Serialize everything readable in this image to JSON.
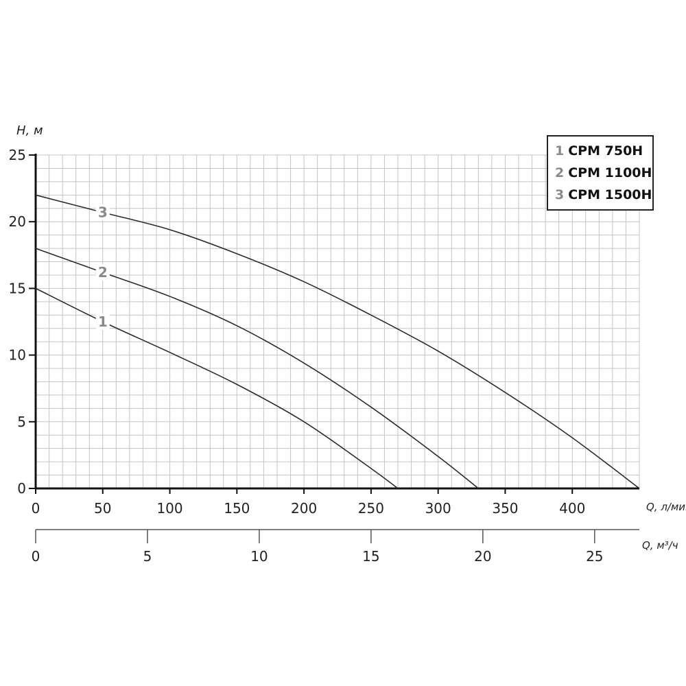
{
  "chart_data": {
    "type": "line",
    "title": "",
    "ylabel": "H, м",
    "xlabel": "Q, л/мин",
    "x2label": "Q, м³/ч",
    "xlim": [
      0,
      450
    ],
    "ylim": [
      0,
      25
    ],
    "grid": true,
    "y_ticks": [
      "0",
      "5",
      "10",
      "15",
      "20",
      "25"
    ],
    "x_ticks": [
      "0",
      "50",
      "100",
      "150",
      "200",
      "250",
      "300",
      "350",
      "400"
    ],
    "x2_ticks": [
      "0",
      "5",
      "10",
      "15",
      "20",
      "25"
    ],
    "x2_tick_values": [
      0,
      5,
      10,
      15,
      20,
      25
    ],
    "legend_position": "top-right",
    "series": [
      {
        "id": "1",
        "name": "CPM 750H",
        "x": [
          0,
          50,
          100,
          150,
          200,
          250,
          270
        ],
        "y": [
          15,
          12.5,
          10.2,
          7.8,
          5.0,
          1.5,
          0
        ]
      },
      {
        "id": "2",
        "name": "CPM 1100H",
        "x": [
          0,
          50,
          100,
          150,
          200,
          250,
          300,
          330
        ],
        "y": [
          18,
          16.2,
          14.4,
          12.2,
          9.4,
          6.1,
          2.4,
          0
        ]
      },
      {
        "id": "3",
        "name": "CPM 1500H",
        "x": [
          0,
          50,
          100,
          150,
          200,
          250,
          300,
          350,
          400,
          450
        ],
        "y": [
          22,
          20.7,
          19.4,
          17.6,
          15.5,
          13.0,
          10.3,
          7.2,
          3.8,
          0
        ]
      }
    ]
  }
}
